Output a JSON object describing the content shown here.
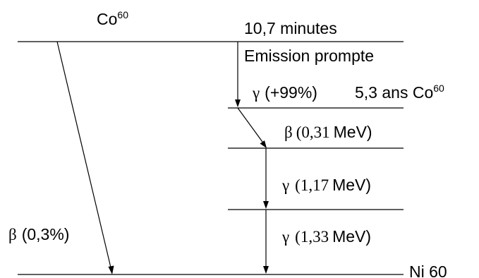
{
  "diagram": {
    "top_label": {
      "base": "Co",
      "sup": "60"
    },
    "half_life": "10,7 minutes",
    "prompt": "Emission prompte",
    "gamma_prompt": {
      "symbol": "γ",
      "value": "(+99%)"
    },
    "state_label": {
      "text": "5,3 ans Co",
      "sup": "60"
    },
    "beta_main": {
      "symbol": "β",
      "num": "(0,31",
      "unit": "MeV)"
    },
    "gamma_1": {
      "symbol": "γ",
      "num": "(1,17",
      "unit": "MeV)"
    },
    "gamma_2": {
      "symbol": "γ",
      "num": "(1,33",
      "unit": "MeV)"
    },
    "beta_minor": {
      "symbol": "β",
      "value": "(0,3%)"
    },
    "bottom_label": "Ni 60"
  }
}
